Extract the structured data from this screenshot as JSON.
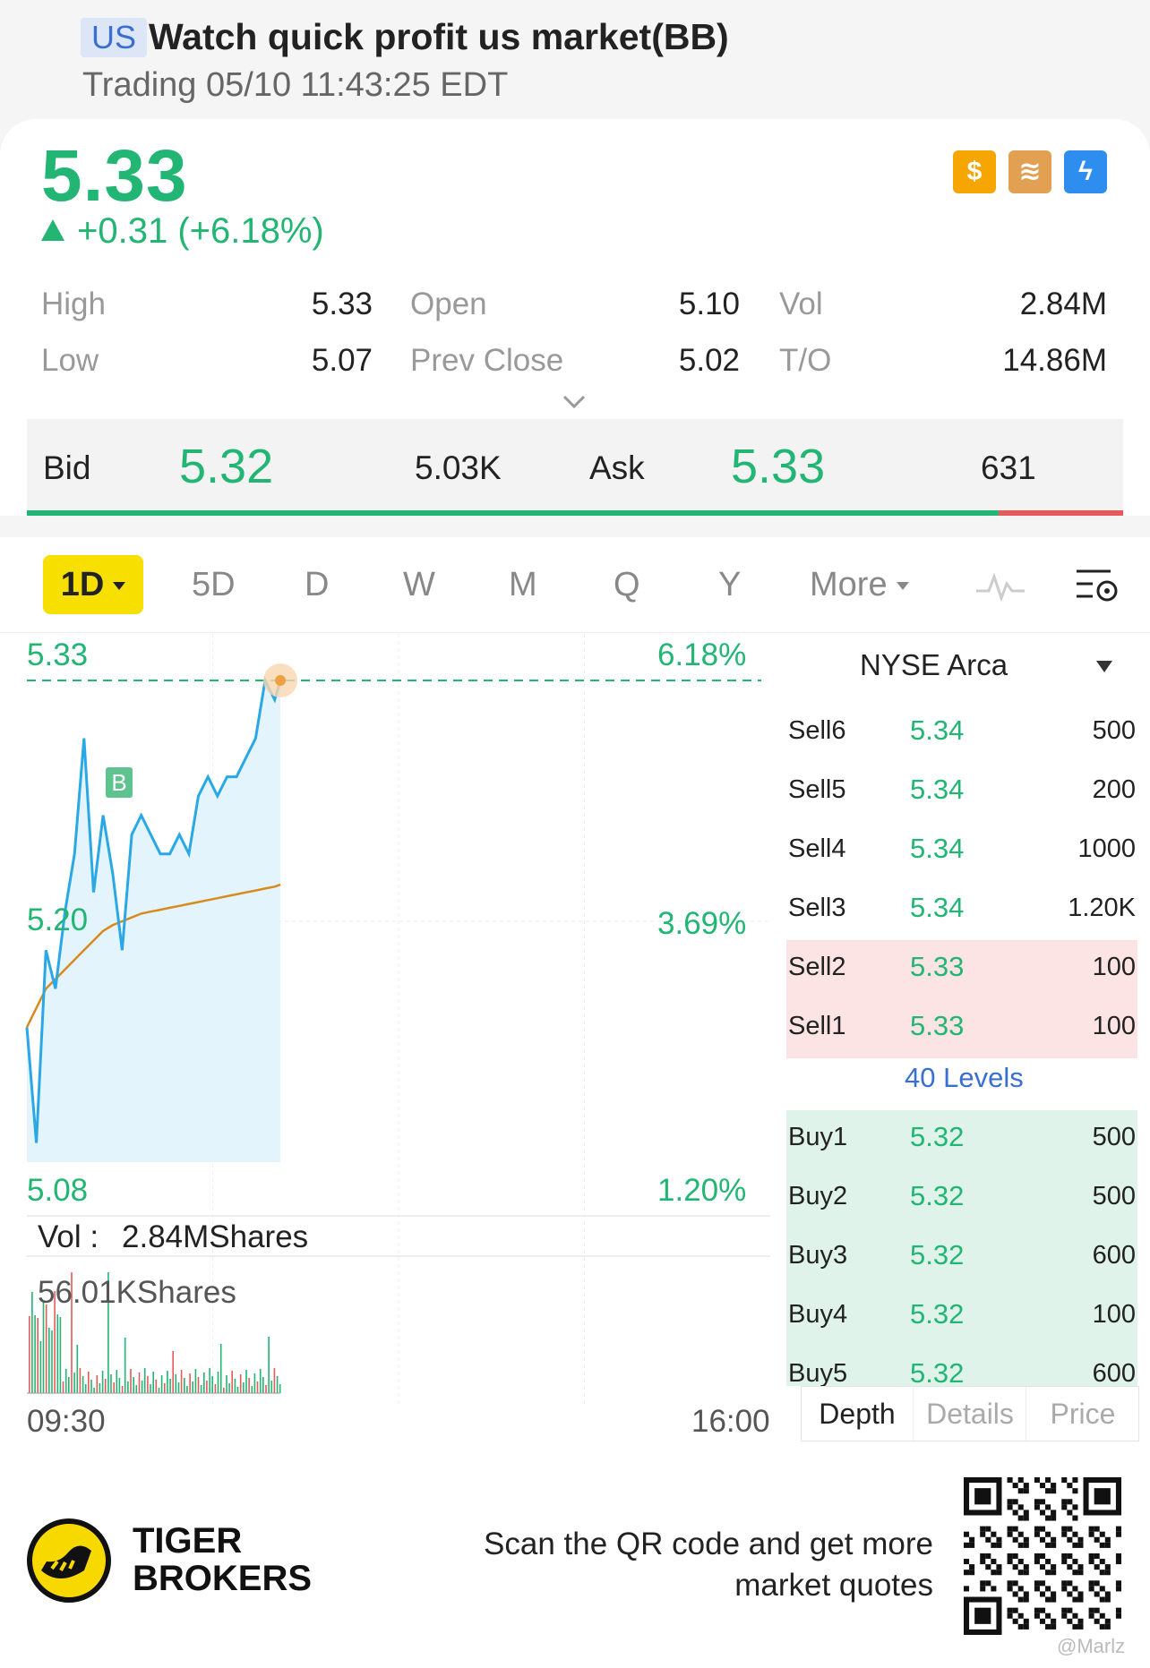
{
  "header": {
    "market_badge": "US",
    "title": "Watch quick profit us market(BB)",
    "status": "Trading 05/10 11:43:25 EDT"
  },
  "quote": {
    "price": "5.33",
    "change": "+0.31 (+6.18%)",
    "icons": [
      "dollar-icon",
      "stack-icon",
      "lightning-icon"
    ]
  },
  "stats": {
    "high_label": "High",
    "high": "5.33",
    "open_label": "Open",
    "open": "5.10",
    "vol_label": "Vol",
    "vol": "2.84M",
    "low_label": "Low",
    "low": "5.07",
    "prev_label": "Prev Close",
    "prev": "5.02",
    "to_label": "T/O",
    "to": "14.86M"
  },
  "bidask": {
    "bid_label": "Bid",
    "bid": "5.32",
    "bid_size": "5.03K",
    "ask_label": "Ask",
    "ask": "5.33",
    "ask_size": "631"
  },
  "tabs": [
    "1D",
    "5D",
    "D",
    "W",
    "M",
    "Q",
    "Y",
    "More"
  ],
  "chart": {
    "y_top": "5.33",
    "y_mid": "5.20",
    "y_bot": "5.08",
    "pct_top": "6.18%",
    "pct_mid": "3.69%",
    "pct_bot": "1.20%",
    "vol_label": "Vol :",
    "vol_value": "2.84MShares",
    "vol_max": "56.01KShares",
    "t_start": "09:30",
    "t_end": "16:00",
    "marker": "B"
  },
  "chart_data": {
    "type": "line",
    "title": "",
    "ylim": [
      5.08,
      5.33
    ],
    "series": [
      {
        "x": [
          "09:30",
          "09:35",
          "09:40",
          "09:45",
          "09:50",
          "09:55",
          "10:00",
          "10:05",
          "10:10",
          "10:15",
          "10:20",
          "10:25",
          "10:30",
          "10:35",
          "10:40",
          "10:45",
          "10:50",
          "10:55",
          "11:00",
          "11:05",
          "11:10",
          "11:15",
          "11:20",
          "11:25",
          "11:30",
          "11:35",
          "11:40",
          "11:43"
        ],
        "values": [
          5.15,
          5.09,
          5.19,
          5.17,
          5.21,
          5.24,
          5.3,
          5.22,
          5.26,
          5.23,
          5.19,
          5.25,
          5.26,
          5.25,
          5.24,
          5.24,
          5.25,
          5.24,
          5.27,
          5.28,
          5.27,
          5.28,
          5.28,
          5.29,
          5.3,
          5.33,
          5.32,
          5.33
        ]
      },
      {
        "x": [
          "09:30",
          "09:35",
          "09:40",
          "09:45",
          "09:50",
          "09:55",
          "10:00",
          "10:05",
          "10:10",
          "10:15",
          "10:20",
          "10:25",
          "10:30",
          "10:35",
          "10:40",
          "10:45",
          "10:50",
          "10:55",
          "11:00",
          "11:05",
          "11:10",
          "11:15",
          "11:20",
          "11:25",
          "11:30",
          "11:35",
          "11:40",
          "11:43"
        ],
        "values": [
          5.15,
          5.16,
          5.17,
          5.175,
          5.18,
          5.185,
          5.19,
          5.195,
          5.2,
          5.203,
          5.205,
          5.207,
          5.209,
          5.21,
          5.211,
          5.212,
          5.213,
          5.214,
          5.215,
          5.216,
          5.217,
          5.218,
          5.219,
          5.22,
          5.221,
          5.222,
          5.223,
          5.224
        ]
      }
    ]
  },
  "depth": {
    "exchange": "NYSE Arca",
    "sells": [
      {
        "label": "Sell6",
        "price": "5.34",
        "size": "500"
      },
      {
        "label": "Sell5",
        "price": "5.34",
        "size": "200"
      },
      {
        "label": "Sell4",
        "price": "5.34",
        "size": "1000"
      },
      {
        "label": "Sell3",
        "price": "5.34",
        "size": "1.20K"
      },
      {
        "label": "Sell2",
        "price": "5.33",
        "size": "100"
      },
      {
        "label": "Sell1",
        "price": "5.33",
        "size": "100"
      }
    ],
    "levels_link": "40 Levels",
    "buys": [
      {
        "label": "Buy1",
        "price": "5.32",
        "size": "500"
      },
      {
        "label": "Buy2",
        "price": "5.32",
        "size": "500"
      },
      {
        "label": "Buy3",
        "price": "5.32",
        "size": "600"
      },
      {
        "label": "Buy4",
        "price": "5.32",
        "size": "100"
      },
      {
        "label": "Buy5",
        "price": "5.32",
        "size": "600"
      }
    ],
    "tabs": [
      "Depth",
      "Details",
      "Price"
    ]
  },
  "footer": {
    "brand_line1": "TIGER",
    "brand_line2": "BROKERS",
    "scan_line1": "Scan the QR code and get more",
    "scan_line2": "market quotes",
    "watermark": "@Marlz"
  },
  "colors": {
    "up": "#22b573",
    "down": "#e55a5a",
    "accent": "#f7e000",
    "line": "#2aa8e6",
    "avg": "#d98a1c"
  }
}
